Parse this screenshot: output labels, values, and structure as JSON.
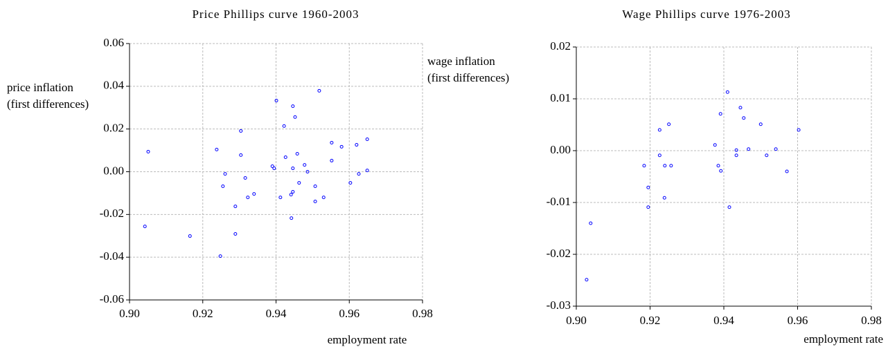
{
  "chart_data": [
    {
      "type": "scatter",
      "title": "Price Phillips curve 1960-2003",
      "x_label": "employment rate",
      "y_label": [
        "price inflation",
        "(first differences)"
      ],
      "color": "#0000ff",
      "grid": true,
      "xlim": [
        0.9,
        0.98
      ],
      "xticks": [
        {
          "value": 0.9,
          "label": "0.90"
        },
        0.92,
        0.94,
        0.96,
        0.98
      ],
      "ylim": [
        -0.06,
        0.06
      ],
      "yticks": [
        0.06,
        0.04,
        0.02,
        {
          "value": 0,
          "label": "0.00"
        },
        -0.02,
        -0.04,
        -0.06
      ],
      "x": [
        0.9042,
        0.9051,
        0.9165,
        0.9238,
        0.9248,
        0.9255,
        0.9261,
        0.9289,
        0.9289,
        0.9304,
        0.9304,
        0.9316,
        0.9323,
        0.934,
        0.939,
        0.9395,
        0.9401,
        0.9412,
        0.9422,
        0.9426,
        0.9441,
        0.9442,
        0.9446,
        0.9446,
        0.9446,
        0.9452,
        0.9458,
        0.9463,
        0.9478,
        0.9486,
        0.9507,
        0.9507,
        0.9518,
        0.953,
        0.9552,
        0.9552,
        0.9579,
        0.9603,
        0.962,
        0.9626,
        0.9649,
        0.9649
      ],
      "values": [
        -0.0256,
        0.0094,
        -0.0301,
        0.0104,
        -0.0395,
        -0.0068,
        -0.001,
        -0.0162,
        -0.0291,
        0.0191,
        0.0078,
        -0.0029,
        -0.012,
        -0.0104,
        0.0026,
        0.0016,
        0.0333,
        -0.012,
        0.0214,
        0.0068,
        -0.0107,
        -0.0217,
        -0.0094,
        0.0307,
        0.0016,
        0.0256,
        0.0084,
        -0.0052,
        0.0032,
        0.0,
        -0.0068,
        -0.0139,
        0.0379,
        -0.012,
        0.0136,
        0.0052,
        0.0117,
        -0.0052,
        0.0126,
        -0.001,
        0.0152,
        0.0006
      ]
    },
    {
      "type": "scatter",
      "title": "Wage Phillips curve 1976-2003",
      "x_label": "employment rate",
      "y_label": [
        "wage inflation",
        "(first differences)"
      ],
      "color": "#0000ff",
      "grid": true,
      "xlim": [
        0.9,
        0.98
      ],
      "xticks": [
        {
          "value": 0.9,
          "label": "0.90"
        },
        0.92,
        0.94,
        0.96,
        0.98
      ],
      "ylim": [
        -0.03,
        0.02
      ],
      "yticks": [
        0.02,
        0.01,
        {
          "value": 0,
          "label": "0.00"
        },
        -0.01,
        -0.02,
        -0.03
      ],
      "x": [
        0.9028,
        0.9039,
        0.9184,
        0.9195,
        0.9195,
        0.9226,
        0.9226,
        0.9239,
        0.924,
        0.9251,
        0.9257,
        0.9376,
        0.9385,
        0.9391,
        0.9392,
        0.941,
        0.9415,
        0.9434,
        0.9434,
        0.9445,
        0.9454,
        0.9467,
        0.95,
        0.9516,
        0.9541,
        0.9571,
        0.9603
      ],
      "values": [
        -0.0249,
        -0.014,
        -0.0029,
        -0.0071,
        -0.0109,
        0.004,
        -0.0009,
        -0.0091,
        -0.0029,
        0.0051,
        -0.0029,
        0.0011,
        -0.0029,
        0.0071,
        -0.0039,
        0.0113,
        -0.0109,
        0.0001,
        -0.0009,
        0.0083,
        0.0063,
        0.0003,
        0.0051,
        -0.0009,
        0.0003,
        -0.004,
        0.004
      ]
    }
  ]
}
